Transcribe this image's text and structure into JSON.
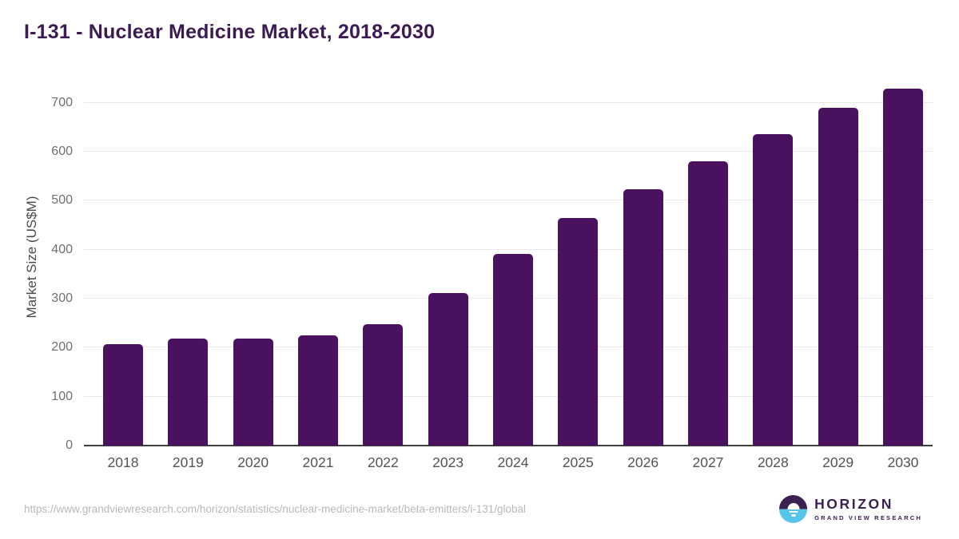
{
  "page": {
    "background": "#ffffff"
  },
  "chart_data": {
    "type": "bar",
    "title": "I-131 - Nuclear Medicine Market, 2018-2030",
    "xlabel": "",
    "ylabel": "Market Size (US$M)",
    "categories": [
      "2018",
      "2019",
      "2020",
      "2021",
      "2022",
      "2023",
      "2024",
      "2025",
      "2026",
      "2027",
      "2028",
      "2029",
      "2030"
    ],
    "values": [
      207,
      219,
      218,
      225,
      248,
      311,
      391,
      465,
      523,
      580,
      636,
      690,
      729
    ],
    "yticks": [
      0,
      100,
      200,
      300,
      400,
      500,
      600,
      700
    ],
    "ylim": [
      0,
      747
    ],
    "grid": "horizontal-only",
    "legend_position": "none",
    "bar_color": "#4a115e",
    "gridline_color": "#e9e9e9",
    "axis_line_color": "#3f3f3f",
    "title_color": "#3b1b52"
  },
  "footer": {
    "source_url": "https://www.grandviewresearch.com/horizon/statistics/nuclear-medicine-market/beta-emitters/i-131/global",
    "logo": {
      "brand": "HORIZON",
      "sub_brand": "GRAND VIEW RESEARCH",
      "brand_color": "#3b2153",
      "water_color": "#56c5ea"
    }
  }
}
